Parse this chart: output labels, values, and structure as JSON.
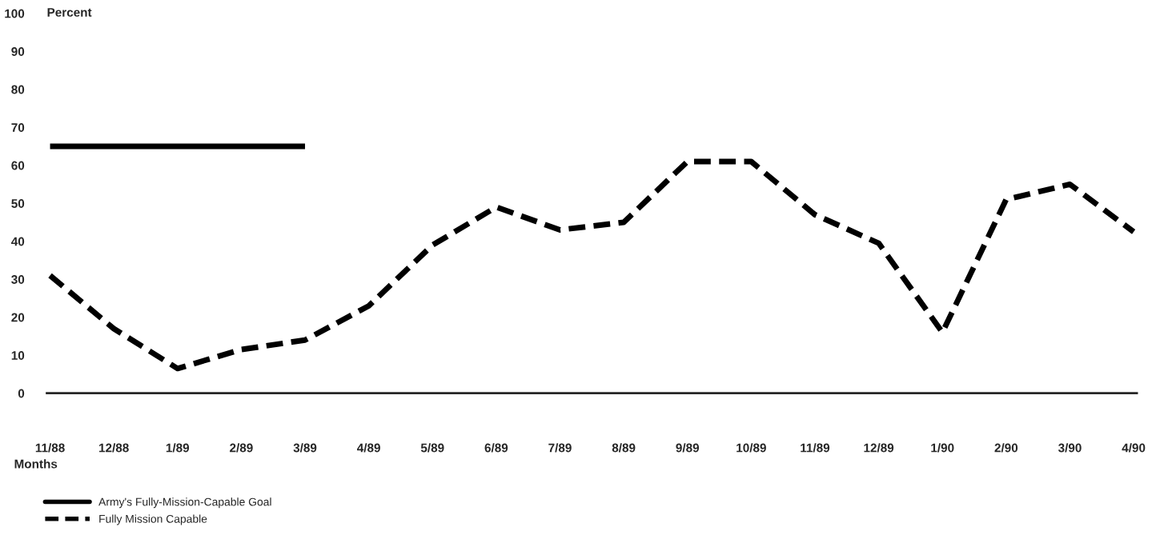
{
  "chart_data": {
    "type": "line",
    "ylabel": "Percent",
    "xlabel": "Months",
    "categories": [
      "11/88",
      "12/88",
      "1/89",
      "2/89",
      "3/89",
      "4/89",
      "5/89",
      "6/89",
      "7/89",
      "8/89",
      "9/89",
      "10/89",
      "11/89",
      "12/89",
      "1/90",
      "2/90",
      "3/90",
      "4/90"
    ],
    "series": [
      {
        "name": "Army's Fully-Mission-Capable Goal",
        "color": "#000000",
        "line_style": "solid",
        "values": [
          65,
          65,
          65,
          65,
          65,
          null,
          null,
          null,
          null,
          null,
          null,
          null,
          null,
          null,
          null,
          null,
          null,
          null
        ]
      },
      {
        "name": "Fully Mission Capable",
        "color": "#000000",
        "line_style": "dashed",
        "values": [
          31,
          17,
          6.5,
          11.5,
          14,
          23,
          39,
          49,
          43,
          45,
          61,
          61,
          47,
          39.5,
          16,
          51,
          55,
          42.5
        ]
      }
    ],
    "ylim": [
      0,
      100
    ],
    "yticks": [
      0,
      10,
      20,
      30,
      40,
      50,
      60,
      70,
      80,
      90,
      100
    ],
    "grid": false,
    "legend": "bottom left",
    "marker": "none"
  }
}
